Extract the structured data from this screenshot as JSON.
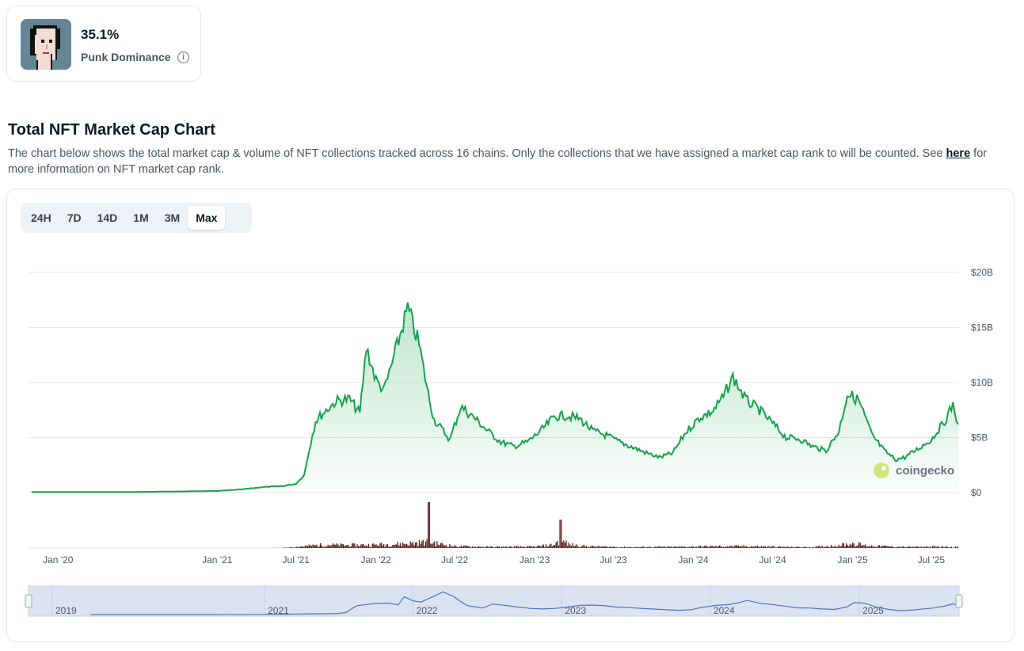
{
  "dominance": {
    "value": "35.1%",
    "label": "Punk Dominance",
    "info_icon": "info-icon",
    "avatar_icon": "cryptopunk-avatar-icon"
  },
  "page": {
    "title": "Total NFT Market Cap Chart",
    "description": "The chart below shows the total market cap & volume of NFT collections tracked across 16 chains. Only the collections that we have assigned a market cap rank to will be counted. See ",
    "link_text": "here",
    "description_end": " for more information on NFT market cap rank."
  },
  "ranges": [
    {
      "label": "24H",
      "active": false
    },
    {
      "label": "7D",
      "active": false
    },
    {
      "label": "14D",
      "active": false
    },
    {
      "label": "1M",
      "active": false
    },
    {
      "label": "3M",
      "active": false
    },
    {
      "label": "Max",
      "active": true
    }
  ],
  "watermark": "coingecko",
  "colors": {
    "line": "#16a34a",
    "area": "#16a34a",
    "volume": "#5b1a1a",
    "navigator_line": "#4f74c4",
    "navigator_fill": "#dbe3f1"
  },
  "chart_data": {
    "type": "area",
    "title": "",
    "xlabel": "",
    "ylabel": "",
    "y_ticks": [
      "$0",
      "$5B",
      "$10B",
      "$15B",
      "$20B"
    ],
    "ylim": [
      0,
      20
    ],
    "y_unit": "B USD",
    "x_ticks": [
      "Jan '20",
      "Jan '21",
      "Jul '21",
      "Jan '22",
      "Jul '22",
      "Jan '23",
      "Jul '23",
      "Jan '24",
      "Jul '24",
      "Jan '25",
      "Jul '25"
    ],
    "navigator_labels": [
      "2019",
      "2021",
      "2022",
      "2023",
      "2024",
      "2025"
    ],
    "series": [
      {
        "name": "Market Cap",
        "x": [
          "2019-11-01",
          "2020-01-01",
          "2020-06-01",
          "2020-10-01",
          "2021-01-01",
          "2021-03-01",
          "2021-04-15",
          "2021-06-01",
          "2021-07-01",
          "2021-07-20",
          "2021-08-01",
          "2021-08-15",
          "2021-09-01",
          "2021-10-01",
          "2021-11-01",
          "2021-11-25",
          "2021-12-10",
          "2022-01-01",
          "2022-01-20",
          "2022-02-15",
          "2022-03-15",
          "2022-04-10",
          "2022-05-01",
          "2022-05-15",
          "2022-06-01",
          "2022-06-20",
          "2022-07-15",
          "2022-08-15",
          "2022-09-15",
          "2022-10-15",
          "2022-11-15",
          "2022-12-15",
          "2023-01-15",
          "2023-02-15",
          "2023-03-15",
          "2023-04-15",
          "2023-05-15",
          "2023-06-15",
          "2023-07-15",
          "2023-08-15",
          "2023-09-15",
          "2023-10-15",
          "2023-11-15",
          "2023-12-15",
          "2024-01-15",
          "2024-02-15",
          "2024-03-10",
          "2024-04-01",
          "2024-05-01",
          "2024-06-01",
          "2024-07-01",
          "2024-08-01",
          "2024-09-01",
          "2024-10-01",
          "2024-11-01",
          "2024-12-01",
          "2024-12-20",
          "2025-01-15",
          "2025-02-15",
          "2025-03-15",
          "2025-04-10",
          "2025-05-01",
          "2025-06-01",
          "2025-07-01",
          "2025-08-01",
          "2025-08-20",
          "2025-09-01"
        ],
        "values": [
          0.05,
          0.05,
          0.05,
          0.1,
          0.15,
          0.3,
          0.5,
          0.6,
          0.8,
          1.6,
          4.0,
          6.5,
          7.2,
          8.3,
          8.5,
          7.2,
          13.2,
          10.2,
          9.3,
          12.8,
          16.8,
          13.5,
          9.0,
          6.6,
          5.8,
          4.8,
          7.8,
          6.8,
          5.6,
          4.6,
          4.2,
          4.6,
          5.6,
          6.9,
          7.0,
          6.7,
          5.6,
          5.2,
          4.6,
          4.1,
          3.6,
          3.2,
          3.6,
          5.5,
          6.8,
          7.4,
          8.7,
          10.5,
          8.4,
          7.5,
          6.3,
          5.0,
          4.9,
          4.2,
          3.8,
          5.6,
          9.0,
          8.4,
          5.2,
          3.8,
          3.0,
          3.2,
          4.0,
          4.8,
          6.5,
          8.0,
          6.2
        ]
      },
      {
        "name": "Volume",
        "x": [
          "2019-11-01",
          "2021-01-01",
          "2021-06-01",
          "2021-08-01",
          "2021-09-01",
          "2021-11-01",
          "2022-01-01",
          "2022-03-01",
          "2022-04-20",
          "2022-05-01",
          "2022-05-15",
          "2022-07-01",
          "2022-10-01",
          "2023-01-01",
          "2023-02-15",
          "2023-03-01",
          "2023-03-15",
          "2023-05-01",
          "2023-08-01",
          "2023-11-01",
          "2024-02-01",
          "2024-05-01",
          "2024-08-01",
          "2024-10-01",
          "2024-12-01",
          "2025-01-01",
          "2025-02-01",
          "2025-05-01",
          "2025-08-01",
          "2025-09-01"
        ],
        "values": [
          0,
          0,
          0.02,
          0.25,
          0.35,
          0.3,
          0.35,
          0.45,
          0.6,
          4.2,
          0.5,
          0.2,
          0.12,
          0.15,
          0.35,
          2.6,
          0.4,
          0.18,
          0.1,
          0.12,
          0.18,
          0.2,
          0.12,
          0.1,
          0.3,
          0.5,
          0.25,
          0.12,
          0.15,
          0.1
        ],
        "ylim": [
          0,
          4.5
        ]
      }
    ],
    "grid": true,
    "legend": "none"
  }
}
